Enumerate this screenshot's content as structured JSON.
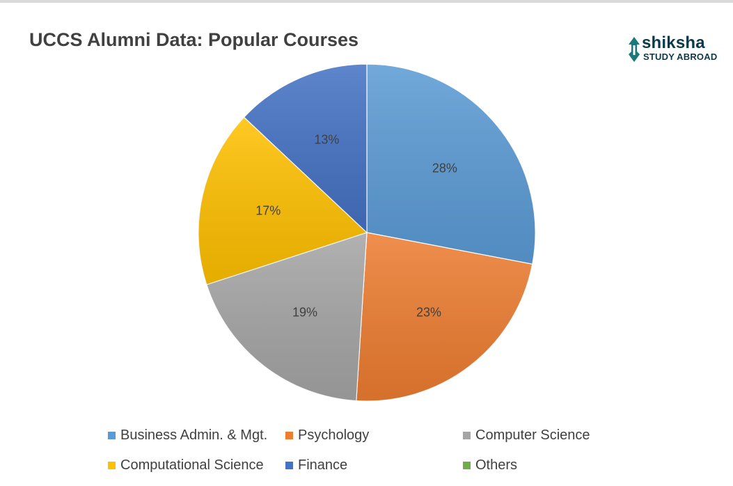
{
  "chart_data": {
    "type": "pie",
    "title": "UCCS Alumni Data: Popular Courses",
    "categories": [
      "Business Admin. & Mgt.",
      "Psychology",
      "Computer Science",
      "Computational Science",
      "Finance",
      "Others"
    ],
    "values": [
      28,
      23,
      19,
      17,
      13,
      0
    ],
    "value_labels": [
      "28%",
      "23%",
      "19%",
      "17%",
      "13%",
      ""
    ],
    "colors": [
      "#5b9bd5",
      "#ed7d31",
      "#a5a5a5",
      "#ffc000",
      "#4472c4",
      "#70ad47"
    ],
    "legend_position": "bottom"
  },
  "logo": {
    "name": "shiksha",
    "subtitle": "STUDY ABROAD",
    "icon": "pen-nib-icon",
    "color": "#0b3a4a"
  }
}
